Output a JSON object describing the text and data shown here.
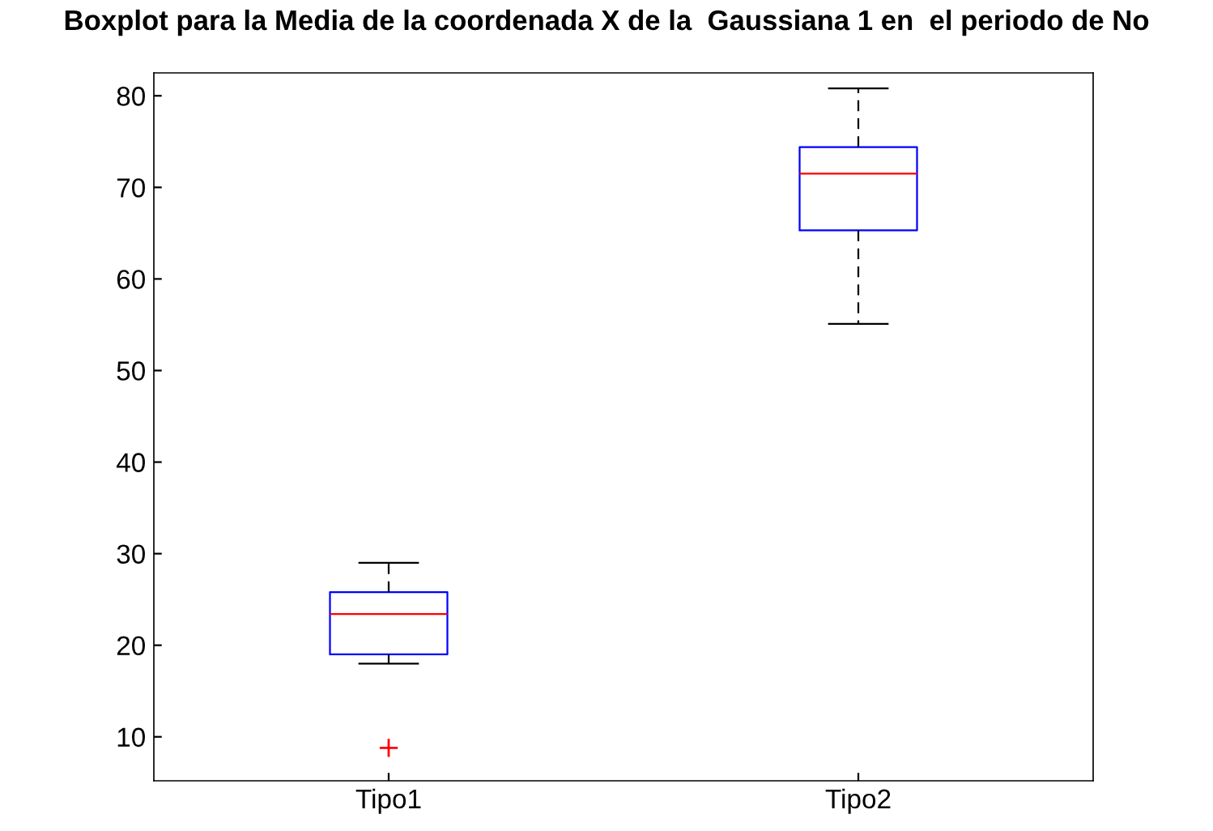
{
  "chart_data": {
    "type": "box",
    "title": "Boxplot para la Media de la coordenada X de la  Gaussiana 1 en  el periodo de No",
    "categories": [
      "Tipo1",
      "Tipo2"
    ],
    "boxes": [
      {
        "low": 18.0,
        "q1": 19.0,
        "median": 23.4,
        "q3": 25.8,
        "high": 29.0,
        "outliers": [
          8.8
        ]
      },
      {
        "low": 55.1,
        "q1": 65.3,
        "median": 71.5,
        "q3": 74.4,
        "high": 80.8
      }
    ],
    "color": "#0000ff",
    "marker": "cross",
    "ylim": [
      5.2,
      82.5
    ],
    "yticks": [
      10,
      20,
      30,
      40,
      50,
      60,
      70,
      80
    ],
    "grid": false
  }
}
